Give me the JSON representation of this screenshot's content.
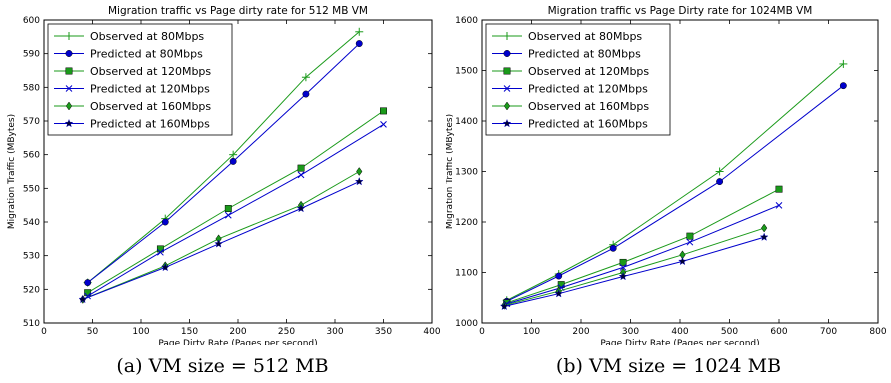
{
  "chart_data": [
    {
      "type": "line",
      "title": "Migration traffic vs Page dirty rate for 512 MB VM",
      "xlabel": "Page Dirty Rate (Pages per second)",
      "ylabel": "Migration Traffic (MBytes)",
      "xlim": [
        0,
        400
      ],
      "ylim": [
        510,
        600
      ],
      "xticks": [
        0,
        50,
        100,
        150,
        200,
        250,
        300,
        350,
        400
      ],
      "yticks": [
        510,
        520,
        530,
        540,
        550,
        560,
        570,
        580,
        590,
        600
      ],
      "legend_position": "top-left",
      "caption": "(a)  VM size = 512 MB",
      "series": [
        {
          "name": "Observed at 80Mbps",
          "color": "#1a9a1a",
          "marker": "plus",
          "x": [
            45,
            125,
            195,
            270,
            325
          ],
          "y": [
            522,
            541,
            560,
            583,
            596.5
          ]
        },
        {
          "name": "Predicted at 80Mbps",
          "color": "#0000cc",
          "marker": "circle",
          "x": [
            45,
            125,
            195,
            270,
            325
          ],
          "y": [
            522,
            540,
            558,
            578,
            593
          ]
        },
        {
          "name": "Observed at 120Mbps",
          "color": "#1a9a1a",
          "marker": "square",
          "x": [
            45,
            120,
            190,
            265,
            350
          ],
          "y": [
            519,
            532,
            544,
            556,
            573
          ]
        },
        {
          "name": "Predicted at 120Mbps",
          "color": "#0000cc",
          "marker": "x",
          "x": [
            45,
            120,
            190,
            265,
            350
          ],
          "y": [
            518,
            531,
            542,
            554,
            569
          ]
        },
        {
          "name": "Observed at 160Mbps",
          "color": "#1a9a1a",
          "marker": "diamond",
          "x": [
            40,
            125,
            180,
            265,
            325
          ],
          "y": [
            517,
            527,
            535,
            545,
            555
          ]
        },
        {
          "name": "Predicted at 160Mbps",
          "color": "#0000cc",
          "marker": "star",
          "x": [
            40,
            125,
            180,
            265,
            325
          ],
          "y": [
            517,
            526.5,
            533.5,
            544,
            552
          ]
        }
      ]
    },
    {
      "type": "line",
      "title": "Migration traffic vs Page Dirty rate for 1024MB VM",
      "xlabel": "Page Dirty Rate (Pages per second)",
      "ylabel": "Migration Traffic (MBytes)",
      "xlim": [
        0,
        800
      ],
      "ylim": [
        1000,
        1600
      ],
      "xticks": [
        0,
        100,
        200,
        300,
        400,
        500,
        600,
        700,
        800
      ],
      "yticks": [
        1000,
        1100,
        1200,
        1300,
        1400,
        1500,
        1600
      ],
      "legend_position": "top-left",
      "caption": "(b)  VM size = 1024 MB",
      "series": [
        {
          "name": "Observed at 80Mbps",
          "color": "#1a9a1a",
          "marker": "plus",
          "x": [
            50,
            155,
            265,
            480,
            730
          ],
          "y": [
            1045,
            1097,
            1155,
            1300,
            1513
          ]
        },
        {
          "name": "Predicted at 80Mbps",
          "color": "#0000cc",
          "marker": "circle",
          "x": [
            50,
            155,
            265,
            480,
            730
          ],
          "y": [
            1043,
            1093,
            1148,
            1280,
            1470
          ]
        },
        {
          "name": "Observed at 120Mbps",
          "color": "#1a9a1a",
          "marker": "square",
          "x": [
            50,
            160,
            285,
            420,
            600
          ],
          "y": [
            1040,
            1076,
            1120,
            1172,
            1265
          ]
        },
        {
          "name": "Predicted at 120Mbps",
          "color": "#0000cc",
          "marker": "x",
          "x": [
            50,
            160,
            285,
            420,
            600
          ],
          "y": [
            1038,
            1070,
            1110,
            1160,
            1233
          ]
        },
        {
          "name": "Observed at 160Mbps",
          "color": "#1a9a1a",
          "marker": "diamond",
          "x": [
            45,
            155,
            285,
            405,
            570
          ],
          "y": [
            1035,
            1063,
            1100,
            1135,
            1188
          ]
        },
        {
          "name": "Predicted at 160Mbps",
          "color": "#0000cc",
          "marker": "star",
          "x": [
            45,
            155,
            285,
            405,
            570
          ],
          "y": [
            1033,
            1058,
            1092,
            1122,
            1170
          ]
        }
      ]
    }
  ]
}
